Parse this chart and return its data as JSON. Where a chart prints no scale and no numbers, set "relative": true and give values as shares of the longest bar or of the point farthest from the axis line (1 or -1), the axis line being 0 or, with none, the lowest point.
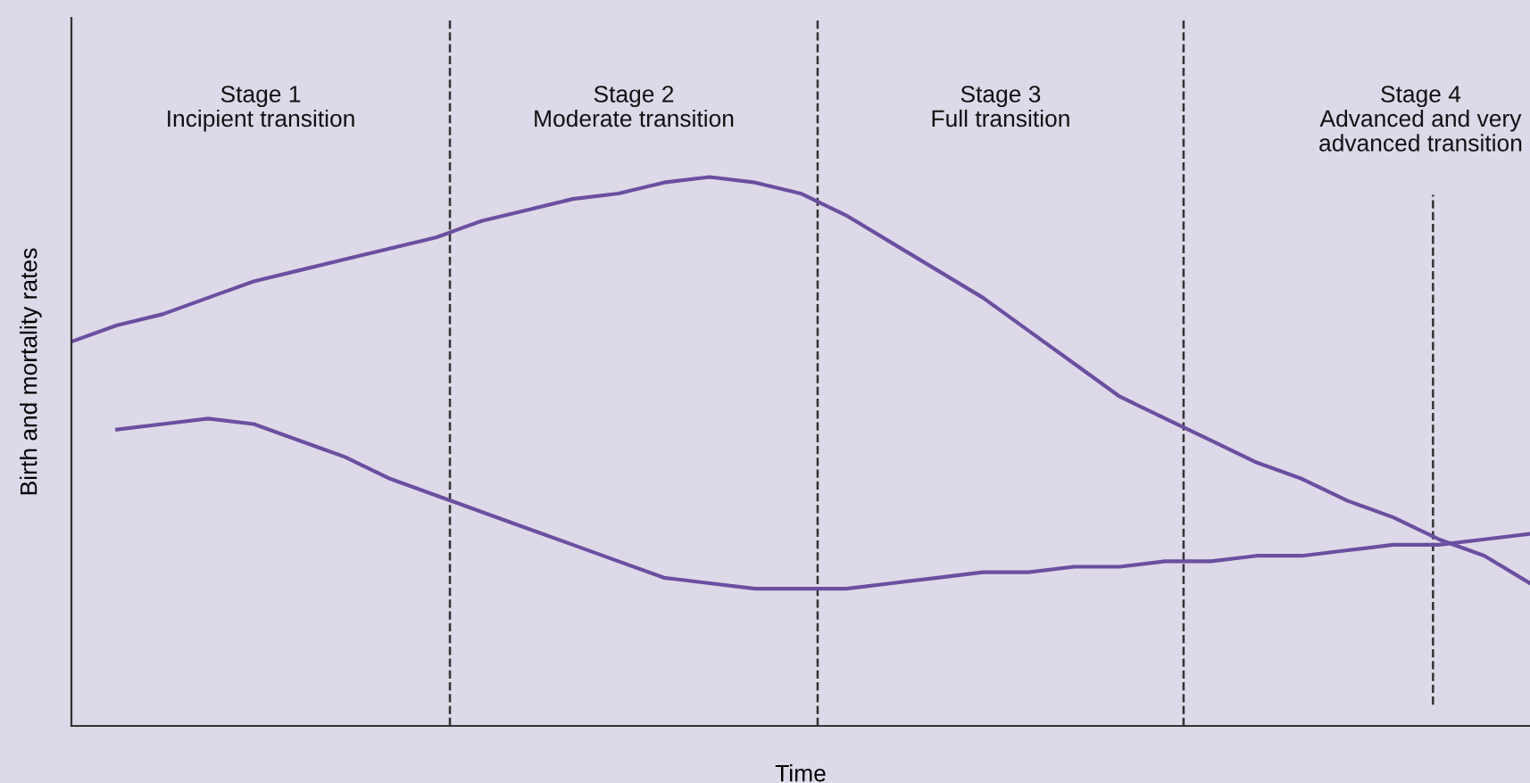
{
  "chart_data": {
    "type": "line",
    "relative": true,
    "xlabel": "Time",
    "ylabel": "Birth and mortality rates",
    "categories": [
      null,
      null,
      null,
      null,
      null,
      null,
      null,
      null,
      null,
      null,
      null,
      null,
      null,
      null,
      null,
      null,
      null,
      null,
      null,
      null,
      null,
      null,
      null,
      null,
      null,
      null,
      null,
      null,
      null,
      null,
      null,
      null,
      null
    ],
    "series": [
      {
        "color": "#6b4fa0",
        "values": [
          0.7,
          0.73,
          0.75,
          0.78,
          0.81,
          0.83,
          0.85,
          0.87,
          0.89,
          0.92,
          0.94,
          0.96,
          0.97,
          0.99,
          1.0,
          0.99,
          0.97,
          0.93,
          0.88,
          0.83,
          0.78,
          0.72,
          0.66,
          0.6,
          0.56,
          0.52,
          0.48,
          0.45,
          0.41,
          0.38,
          0.34,
          0.31,
          0.26
        ]
      },
      {
        "color": "#6b4fa0",
        "values": [
          null,
          0.54,
          0.55,
          0.56,
          0.55,
          0.52,
          0.49,
          0.45,
          0.42,
          0.39,
          0.36,
          0.33,
          0.3,
          0.27,
          0.26,
          0.25,
          0.25,
          0.25,
          0.26,
          0.27,
          0.28,
          0.28,
          0.29,
          0.29,
          0.3,
          0.3,
          0.31,
          0.31,
          0.32,
          0.33,
          0.33,
          0.34,
          0.35
        ]
      }
    ],
    "annotations": [
      "Stage 1\nIncipient transition",
      "Stage 2\nModerate transition",
      "Stage 3\nFull transition",
      "Stage 4\nAdvanced and very\nadvanced transition"
    ],
    "grid": false,
    "legend": false,
    "marker": "none",
    "line_style": "solid"
  }
}
